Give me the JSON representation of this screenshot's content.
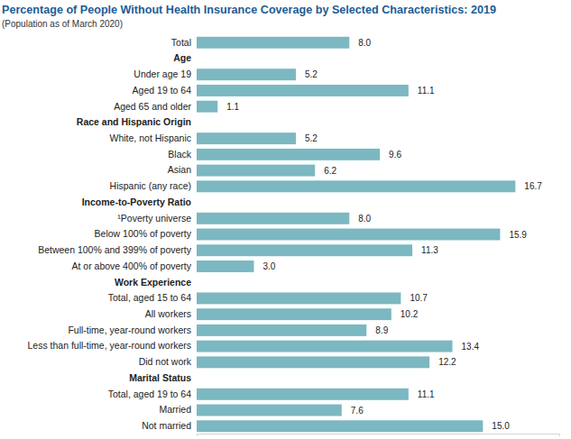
{
  "chart_data": {
    "type": "bar",
    "orientation": "horizontal",
    "title": "Percentage of People Without Health Insurance Coverage by Selected Characteristics: 2019",
    "subtitle": "(Population as of March 2020)",
    "categories": [
      "Total",
      "Age",
      "Under age 19",
      "Aged 19 to 64",
      "Aged 65 and older",
      "Race and Hispanic Origin",
      "White, not Hispanic",
      "Black",
      "Asian",
      "Hispanic (any race)",
      "Income-to-Poverty Ratio",
      "¹Poverty universe",
      "Below 100% of poverty",
      "Between 100% and 399% of poverty",
      "At or above 400% of poverty",
      "Work Experience",
      "Total, aged 15 to 64",
      "All workers",
      "Full-time, year-round workers",
      "Less than full-time, year-round workers",
      "Did not work",
      "Marital Status",
      "Total, aged 19 to 64",
      "Married",
      "Not married"
    ],
    "values": [
      8.0,
      null,
      5.2,
      11.1,
      1.1,
      null,
      5.2,
      9.6,
      6.2,
      16.7,
      null,
      8.0,
      15.9,
      11.3,
      3.0,
      null,
      10.7,
      10.2,
      8.9,
      13.4,
      12.2,
      null,
      11.1,
      7.6,
      15.0
    ],
    "value_labels": [
      "8.0",
      null,
      "5.2",
      "11.1",
      "1.1",
      null,
      "5.2",
      "9.6",
      "6.2",
      "16.7",
      null,
      "8.0",
      "15.9",
      "11.3",
      "3.0",
      null,
      "10.7",
      "10.2",
      "8.9",
      "13.4",
      "12.2",
      null,
      "11.1",
      "7.6",
      "15.0"
    ],
    "data_labels": true,
    "color": "#7bb8c1",
    "xlim": [
      0,
      19
    ],
    "xticks": [],
    "tick_labels": "y",
    "grid": false
  }
}
